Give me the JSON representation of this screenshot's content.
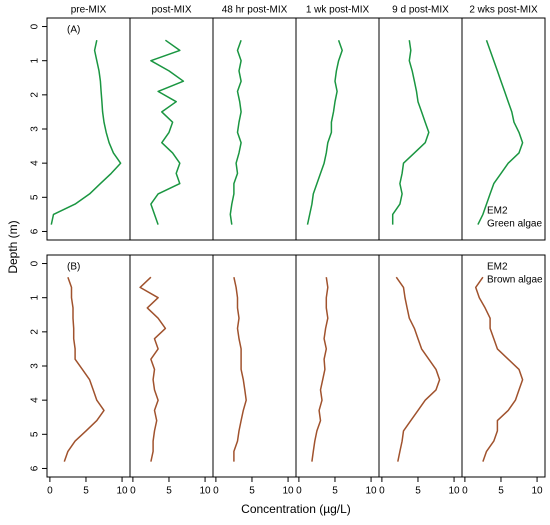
{
  "chart_data": {
    "type": "line",
    "y_label": "Depth (m)",
    "x_label": "Concentration (µg/L)",
    "columns": [
      "pre-MIX",
      "post-MIX",
      "48 hr post-MIX",
      "1 wk post-MIX",
      "9 d post-MIX",
      "2 wks post-MIX"
    ],
    "depth": [
      0.4,
      0.7,
      1.0,
      1.3,
      1.6,
      1.9,
      2.2,
      2.5,
      2.8,
      3.1,
      3.4,
      3.7,
      4.0,
      4.3,
      4.6,
      4.9,
      5.2,
      5.5,
      5.8
    ],
    "xlim": [
      -0.4,
      11.1
    ],
    "xticks": [
      0,
      5,
      10
    ],
    "ylim": [
      -0.25,
      6.25
    ],
    "yticks": [
      0,
      1,
      2,
      3,
      4,
      5,
      6
    ],
    "y_inverted": true,
    "rows": [
      {
        "label": "(A)",
        "annotation": [
          "EM2",
          "Green algae"
        ],
        "color": "#1a9641",
        "panels": [
          [
            6.5,
            6.2,
            6.5,
            6.8,
            7.0,
            7.1,
            7.2,
            7.3,
            7.5,
            7.8,
            8.2,
            8.8,
            9.8,
            8.5,
            7.0,
            5.5,
            3.5,
            0.5,
            0.2
          ],
          [
            4.5,
            6.5,
            2.5,
            5.0,
            7.0,
            3.5,
            6.0,
            4.0,
            5.5,
            5.0,
            4.0,
            5.5,
            6.5,
            6.0,
            6.5,
            3.5,
            2.5,
            3.0,
            3.5
          ],
          [
            3.5,
            3.0,
            3.5,
            3.2,
            3.5,
            3.0,
            3.3,
            3.5,
            3.2,
            3.0,
            3.5,
            3.2,
            2.8,
            3.0,
            2.5,
            2.5,
            2.2,
            2.0,
            2.2
          ],
          [
            5.5,
            6.0,
            5.5,
            5.2,
            5.0,
            5.3,
            5.0,
            4.8,
            4.5,
            4.5,
            4.0,
            3.8,
            3.5,
            3.0,
            2.5,
            2.0,
            1.8,
            1.5,
            1.2
          ],
          [
            3.8,
            4.0,
            3.8,
            4.2,
            4.5,
            4.8,
            5.0,
            5.5,
            6.0,
            6.5,
            6.0,
            4.5,
            3.0,
            2.8,
            2.5,
            2.8,
            2.5,
            1.5,
            1.5
          ],
          [
            3.0,
            3.5,
            4.0,
            4.5,
            5.0,
            5.5,
            6.0,
            6.5,
            6.8,
            7.5,
            8.0,
            7.5,
            6.0,
            5.0,
            4.0,
            3.5,
            3.0,
            2.5,
            1.8
          ]
        ]
      },
      {
        "label": "(B)",
        "annotation": [
          "EM2",
          "Brown algae"
        ],
        "color": "#a0522d",
        "panels": [
          [
            2.5,
            3.0,
            3.0,
            3.2,
            3.2,
            3.3,
            3.3,
            3.5,
            3.5,
            4.5,
            5.5,
            6.0,
            6.5,
            7.5,
            6.5,
            5.0,
            3.5,
            2.5,
            2.0
          ],
          [
            2.5,
            1.0,
            3.5,
            2.0,
            3.5,
            4.5,
            3.0,
            3.5,
            2.5,
            3.0,
            2.8,
            3.0,
            3.5,
            3.0,
            3.3,
            3.0,
            2.8,
            2.8,
            2.5
          ],
          [
            2.5,
            2.8,
            3.0,
            3.0,
            3.2,
            3.0,
            3.2,
            3.5,
            3.5,
            3.5,
            3.8,
            4.0,
            4.2,
            3.8,
            3.5,
            3.2,
            3.0,
            2.5,
            2.5
          ],
          [
            3.8,
            4.0,
            3.8,
            3.8,
            4.0,
            3.7,
            3.5,
            3.8,
            3.5,
            3.6,
            3.3,
            3.0,
            3.2,
            2.8,
            3.0,
            2.5,
            2.2,
            2.0,
            1.8
          ],
          [
            2.0,
            3.0,
            3.2,
            3.5,
            3.8,
            4.5,
            5.0,
            5.5,
            6.5,
            7.5,
            8.0,
            7.5,
            6.0,
            5.0,
            4.0,
            3.0,
            2.8,
            2.5,
            2.2
          ],
          [
            2.5,
            1.5,
            2.0,
            2.8,
            3.5,
            3.5,
            4.0,
            4.5,
            6.0,
            7.5,
            8.0,
            7.5,
            7.0,
            6.0,
            4.5,
            4.5,
            4.0,
            3.0,
            2.5
          ]
        ]
      }
    ]
  }
}
